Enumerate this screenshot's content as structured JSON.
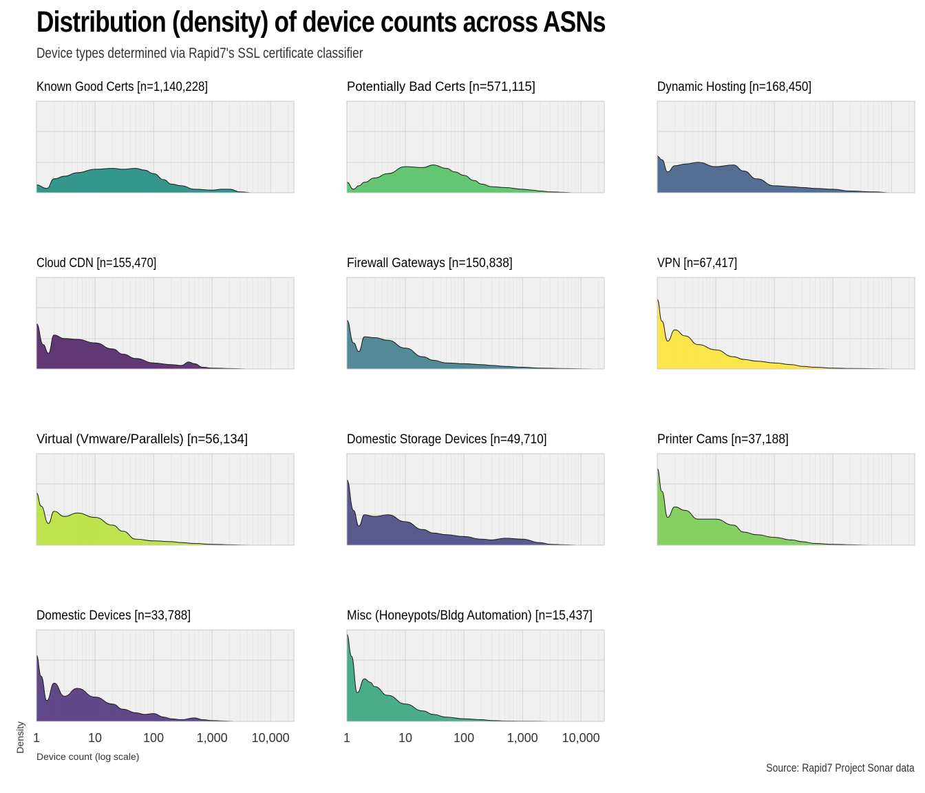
{
  "title": "Distribution (density) of device counts across ASNs",
  "subtitle": "Device types determined via Rapid7's SSL certificate classifier",
  "caption": "Source: Rapid7 Project Sonar data",
  "chart_data": {
    "type": "area",
    "subtype": "density small multiples",
    "xlabel": "Device count (log scale)",
    "ylabel": "Density",
    "x_scale": "log10",
    "xlim": [
      1,
      25000
    ],
    "x_ticks": [
      1,
      10,
      100,
      1000,
      10000
    ],
    "x_tick_labels": [
      "1",
      "10",
      "100",
      "1,000",
      "10,000"
    ],
    "ylim": [
      0,
      1
    ],
    "grid": true,
    "panels": [
      {
        "label": "Known Good Certs [n=1,140,228]",
        "color": "#2A9086",
        "x": [
          1,
          1.5,
          2,
          3,
          5,
          10,
          20,
          30,
          50,
          70,
          100,
          150,
          200,
          300,
          500,
          1000,
          1500,
          2000,
          3000,
          5000
        ],
        "y": [
          0.09,
          0.05,
          0.16,
          0.19,
          0.23,
          0.27,
          0.28,
          0.27,
          0.28,
          0.26,
          0.22,
          0.15,
          0.1,
          0.08,
          0.04,
          0.03,
          0.04,
          0.04,
          0.01,
          0
        ]
      },
      {
        "label": "Potentially Bad Certs [n=571,115]",
        "color": "#5BC36B",
        "x": [
          1,
          1.3,
          1.6,
          2,
          3,
          5,
          10,
          20,
          30,
          50,
          70,
          100,
          150,
          200,
          300,
          500,
          1000,
          1500,
          2000,
          3000,
          5000,
          8000
        ],
        "y": [
          0.12,
          0.04,
          0.08,
          0.12,
          0.17,
          0.22,
          0.3,
          0.29,
          0.32,
          0.28,
          0.24,
          0.2,
          0.14,
          0.1,
          0.07,
          0.06,
          0.04,
          0.03,
          0.02,
          0.01,
          0.005,
          0
        ]
      },
      {
        "label": "Dynamic Hosting [n=168,450]",
        "color": "#4C668D",
        "x": [
          1,
          1.2,
          1.5,
          2,
          3,
          5,
          10,
          20,
          30,
          50,
          100,
          200,
          300,
          500,
          1000,
          2000,
          5000,
          10000
        ],
        "y": [
          0.42,
          0.38,
          0.24,
          0.31,
          0.33,
          0.35,
          0.3,
          0.32,
          0.25,
          0.16,
          0.08,
          0.07,
          0.06,
          0.05,
          0.04,
          0.02,
          0.01,
          0
        ]
      },
      {
        "label": "Cloud CDN [n=155,470]",
        "color": "#5A2D6D",
        "x": [
          1,
          1.3,
          1.6,
          2,
          3,
          5,
          10,
          20,
          30,
          50,
          100,
          200,
          300,
          400,
          500,
          700,
          1000,
          2000,
          5000
        ],
        "y": [
          0.52,
          0.28,
          0.18,
          0.39,
          0.35,
          0.34,
          0.3,
          0.23,
          0.17,
          0.12,
          0.07,
          0.05,
          0.04,
          0.08,
          0.06,
          0.02,
          0.01,
          0.005,
          0
        ]
      },
      {
        "label": "Firewall Gateways [n=150,838]",
        "color": "#4B8492",
        "x": [
          1,
          1.3,
          1.6,
          2,
          3,
          5,
          10,
          20,
          30,
          50,
          100,
          200,
          300,
          500,
          1000,
          2000,
          5000,
          10000,
          20000
        ],
        "y": [
          0.56,
          0.3,
          0.2,
          0.37,
          0.36,
          0.33,
          0.24,
          0.14,
          0.1,
          0.07,
          0.06,
          0.05,
          0.04,
          0.03,
          0.02,
          0.01,
          0.005,
          0.002,
          0
        ]
      },
      {
        "label": "VPN [n=67,417]",
        "color": "#FAE541",
        "x": [
          1,
          1.2,
          1.5,
          2,
          3,
          5,
          10,
          20,
          30,
          50,
          100,
          200,
          300,
          500,
          1000,
          2000,
          5000,
          10000
        ],
        "y": [
          0.8,
          0.55,
          0.32,
          0.45,
          0.38,
          0.28,
          0.22,
          0.14,
          0.11,
          0.09,
          0.07,
          0.05,
          0.03,
          0.02,
          0.01,
          0.006,
          0.003,
          0
        ]
      },
      {
        "label": "Virtual (Vmware/Parallels) [n=56,134]",
        "color": "#BCE143",
        "x": [
          1,
          1.2,
          1.6,
          2,
          3,
          5,
          10,
          20,
          30,
          50,
          100,
          200,
          300,
          500,
          1000,
          2000,
          3000,
          5000
        ],
        "y": [
          0.6,
          0.45,
          0.25,
          0.39,
          0.33,
          0.37,
          0.32,
          0.23,
          0.16,
          0.07,
          0.05,
          0.04,
          0.03,
          0.02,
          0.01,
          0.005,
          0.002,
          0
        ]
      },
      {
        "label": "Domestic Storage Devices [n=49,710]",
        "color": "#525189",
        "x": [
          1,
          1.3,
          1.6,
          2,
          3,
          5,
          10,
          20,
          30,
          50,
          100,
          200,
          300,
          500,
          1000,
          2000,
          3000,
          5000,
          10000
        ],
        "y": [
          0.75,
          0.4,
          0.22,
          0.35,
          0.33,
          0.35,
          0.27,
          0.18,
          0.14,
          0.12,
          0.1,
          0.07,
          0.06,
          0.08,
          0.07,
          0.03,
          0.01,
          0.005,
          0
        ]
      },
      {
        "label": "Printer Cams [n=37,188]",
        "color": "#80CE58",
        "x": [
          1,
          1.2,
          1.5,
          2,
          3,
          5,
          10,
          20,
          30,
          50,
          100,
          200,
          300,
          500,
          1000,
          2000,
          3000,
          5000
        ],
        "y": [
          0.88,
          0.62,
          0.32,
          0.44,
          0.4,
          0.3,
          0.3,
          0.23,
          0.15,
          0.12,
          0.09,
          0.06,
          0.04,
          0.02,
          0.01,
          0.005,
          0.002,
          0
        ]
      },
      {
        "label": "Domestic Devices [n=33,788]",
        "color": "#583F83",
        "x": [
          1,
          1.2,
          1.5,
          2,
          3,
          5,
          10,
          20,
          30,
          50,
          70,
          100,
          150,
          200,
          300,
          500,
          700,
          1000,
          1500,
          2000,
          2500
        ],
        "y": [
          0.76,
          0.52,
          0.24,
          0.44,
          0.29,
          0.38,
          0.28,
          0.2,
          0.14,
          0.1,
          0.08,
          0.09,
          0.05,
          0.03,
          0.02,
          0.04,
          0.02,
          0.01,
          0.005,
          0.002,
          0
        ]
      },
      {
        "label": "Misc (Honeypots/Bldg Automation) [n=15,437]",
        "color": "#40A882",
        "x": [
          1,
          1.2,
          1.5,
          2,
          2.5,
          3,
          5,
          10,
          20,
          30,
          50,
          100,
          200,
          300,
          500,
          1000,
          2000,
          3000
        ],
        "y": [
          1.0,
          0.75,
          0.33,
          0.49,
          0.45,
          0.4,
          0.3,
          0.2,
          0.12,
          0.08,
          0.05,
          0.03,
          0.02,
          0.01,
          0.005,
          0.003,
          0.002,
          0
        ]
      }
    ]
  }
}
